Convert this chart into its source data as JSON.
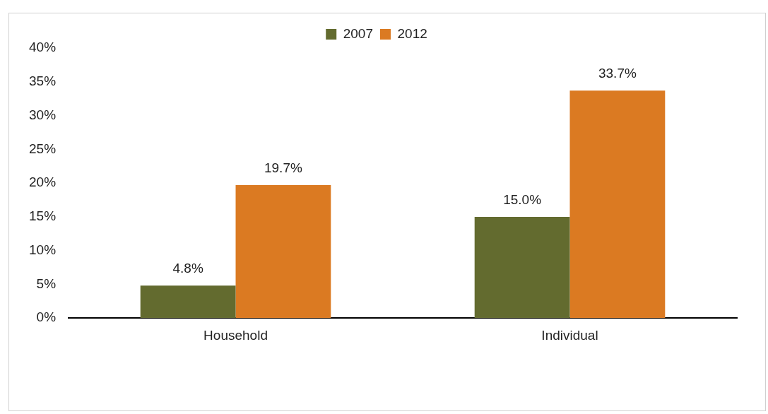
{
  "chart_data": {
    "type": "bar",
    "categories": [
      "Household",
      "Individual"
    ],
    "series": [
      {
        "name": "2007",
        "color": "#636b2f",
        "values": [
          4.8,
          15.0
        ],
        "value_labels": [
          "4.8%",
          "15.0%"
        ]
      },
      {
        "name": "2012",
        "color": "#db7a22",
        "values": [
          19.7,
          33.7
        ],
        "value_labels": [
          "19.7%",
          "33.7%"
        ]
      }
    ],
    "ylim": [
      0,
      40
    ],
    "yticks": [
      {
        "value": 0,
        "label": "0%"
      },
      {
        "value": 5,
        "label": "5%"
      },
      {
        "value": 10,
        "label": "10%"
      },
      {
        "value": 15,
        "label": "15%"
      },
      {
        "value": 20,
        "label": "20%"
      },
      {
        "value": 25,
        "label": "25%"
      },
      {
        "value": 30,
        "label": "30%"
      },
      {
        "value": 35,
        "label": "35%"
      },
      {
        "value": 40,
        "label": "40%"
      }
    ],
    "grid": false,
    "legend": "top"
  }
}
